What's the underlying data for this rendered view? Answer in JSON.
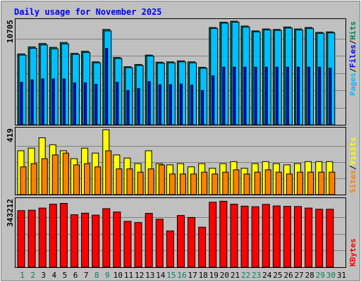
{
  "title": "Daily usage for November 2025",
  "colors": {
    "background": "#c0c0c0",
    "title": "#0000ff",
    "hits": "#00805c",
    "files": "#0000ff",
    "pages": "#00c0ff",
    "visits": "#ffff00",
    "sites": "#ff8000",
    "kbytes": "#ff0000",
    "weekend_day": "#00805c",
    "weekday": "#000000",
    "grid": "#808080"
  },
  "legend": {
    "top": [
      {
        "key": "pages",
        "label": "Pages",
        "color": "#00c0ff"
      },
      {
        "key": "sep1",
        "label": "/",
        "color": "#000000"
      },
      {
        "key": "files",
        "label": "Files",
        "color": "#0000ff"
      },
      {
        "key": "sep2",
        "label": "/",
        "color": "#000000"
      },
      {
        "key": "hits",
        "label": "Hits",
        "color": "#00805c"
      }
    ],
    "middle": [
      {
        "key": "sites",
        "label": "Sites",
        "color": "#ff8000"
      },
      {
        "key": "sep1",
        "label": "/",
        "color": "#000000"
      },
      {
        "key": "visits",
        "label": "Visits",
        "color": "#ffff00"
      }
    ],
    "bottom": [
      {
        "key": "kbytes",
        "label": "KBytes",
        "color": "#ff0000"
      }
    ]
  },
  "chart_data": [
    {
      "type": "bar",
      "name": "hits-files-pages",
      "ymax_label": "10705",
      "ymax": 10705,
      "categories": [
        "1",
        "2",
        "3",
        "4",
        "5",
        "6",
        "7",
        "8",
        "9",
        "10",
        "11",
        "12",
        "13",
        "14",
        "15",
        "16",
        "17",
        "18",
        "19",
        "20",
        "21",
        "22",
        "23",
        "24",
        "25",
        "26",
        "27",
        "28",
        "29",
        "30",
        "31"
      ],
      "series": [
        {
          "name": "Hits",
          "values": [
            7320,
            8050,
            8400,
            8000,
            8500,
            7380,
            7600,
            6500,
            9850,
            6950,
            6000,
            6230,
            7200,
            6470,
            6500,
            6600,
            6500,
            5940,
            10050,
            10600,
            10700,
            10200,
            9700,
            9900,
            9850,
            10100,
            9900,
            10050,
            9550,
            9600,
            null
          ]
        },
        {
          "name": "Files",
          "values": [
            4400,
            4640,
            4740,
            4740,
            4740,
            4330,
            4340,
            4190,
            7900,
            4400,
            3550,
            3740,
            4460,
            4140,
            4150,
            4220,
            4100,
            3550,
            5060,
            5960,
            5960,
            5960,
            5960,
            5960,
            5960,
            5960,
            5960,
            5960,
            5960,
            5860,
            null
          ]
        },
        {
          "name": "Pages",
          "values": [
            7200,
            7900,
            8250,
            7850,
            8350,
            7270,
            7470,
            6400,
            9700,
            6850,
            5900,
            6130,
            7100,
            6370,
            6400,
            6500,
            6400,
            5840,
            9950,
            10500,
            10600,
            10100,
            9600,
            9800,
            9750,
            10000,
            9800,
            9950,
            9450,
            9500,
            null
          ]
        }
      ]
    },
    {
      "type": "bar",
      "name": "visits-sites",
      "ymax_label": "419",
      "ymax": 419,
      "categories": [
        "1",
        "2",
        "3",
        "4",
        "5",
        "6",
        "7",
        "8",
        "9",
        "10",
        "11",
        "12",
        "13",
        "14",
        "15",
        "16",
        "17",
        "18",
        "19",
        "20",
        "21",
        "22",
        "23",
        "24",
        "25",
        "26",
        "27",
        "28",
        "29",
        "30",
        "31"
      ],
      "series": [
        {
          "name": "Visits",
          "values": [
            283,
            300,
            367,
            322,
            283,
            232,
            300,
            268,
            419,
            256,
            236,
            200,
            283,
            200,
            192,
            200,
            179,
            200,
            170,
            200,
            213,
            170,
            200,
            213,
            200,
            192,
            200,
            213,
            213,
            213,
            null
          ]
        },
        {
          "name": "Sites",
          "values": [
            179,
            200,
            232,
            256,
            268,
            192,
            200,
            179,
            283,
            166,
            166,
            145,
            166,
            192,
            133,
            133,
            133,
            145,
            133,
            145,
            160,
            133,
            145,
            160,
            145,
            133,
            145,
            145,
            145,
            145,
            null
          ]
        }
      ]
    },
    {
      "type": "bar",
      "name": "kbytes",
      "ymax_label": "343212",
      "ymax": 343212,
      "categories": [
        "1",
        "2",
        "3",
        "4",
        "5",
        "6",
        "7",
        "8",
        "9",
        "10",
        "11",
        "12",
        "13",
        "14",
        "15",
        "16",
        "17",
        "18",
        "19",
        "20",
        "21",
        "22",
        "23",
        "24",
        "25",
        "26",
        "27",
        "28",
        "29",
        "30",
        "31"
      ],
      "series": [
        {
          "name": "KBytes",
          "values": [
            290000,
            292000,
            303000,
            323000,
            327000,
            269000,
            277000,
            267000,
            300000,
            283000,
            235000,
            229000,
            276000,
            246000,
            186000,
            265000,
            255000,
            205000,
            333000,
            338000,
            323000,
            313000,
            310000,
            322000,
            314000,
            312000,
            311000,
            303000,
            297000,
            297000,
            null
          ]
        }
      ]
    }
  ]
}
